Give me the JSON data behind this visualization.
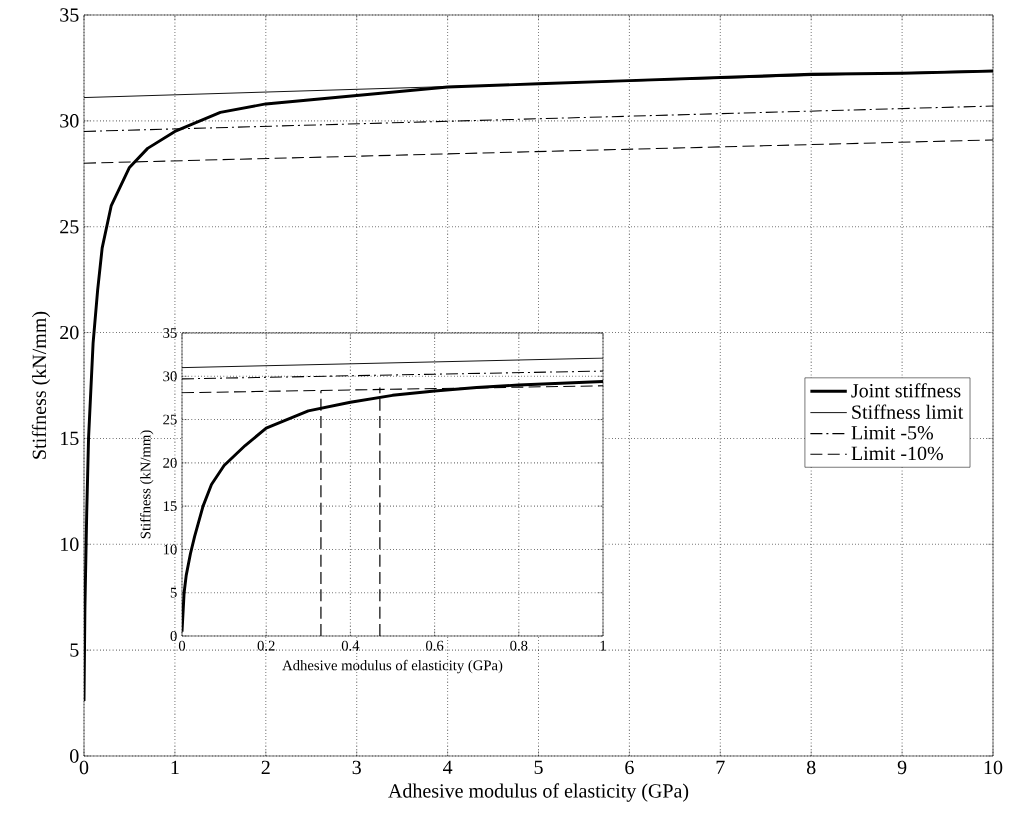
{
  "chart_data": [
    {
      "type": "line",
      "xlabel": "Adhesive modulus of elasticity (GPa)",
      "ylabel": "Stiffness (kN/mm)",
      "xlim": [
        0,
        10
      ],
      "ylim": [
        0,
        35
      ],
      "xticks": [
        0,
        1,
        2,
        3,
        4,
        5,
        6,
        7,
        8,
        9,
        10
      ],
      "yticks": [
        0,
        5,
        10,
        15,
        20,
        25,
        30,
        35
      ],
      "grid": true,
      "legend": "right",
      "series": [
        {
          "name": "Joint stiffness",
          "color": "#000000",
          "line_style": "solid",
          "x": [
            0,
            0.01,
            0.03,
            0.05,
            0.1,
            0.15,
            0.2,
            0.3,
            0.5,
            0.7,
            1,
            1.5,
            2,
            3,
            4,
            5,
            6,
            7,
            8,
            9,
            10
          ],
          "values": [
            2.6,
            7,
            11.5,
            15,
            19.5,
            22,
            24,
            26,
            27.8,
            28.7,
            29.5,
            30.4,
            30.8,
            31.2,
            31.6,
            31.75,
            31.9,
            32.05,
            32.2,
            32.25,
            32.35
          ]
        },
        {
          "name": "Stiffness limit",
          "color": "#000000",
          "line_style": "solid",
          "x": [
            0,
            10
          ],
          "values": [
            31.1,
            32.4
          ]
        },
        {
          "name": "Limit -5%",
          "color": "#000000",
          "line_style": "dashdot",
          "x": [
            0,
            10
          ],
          "values": [
            29.5,
            30.7
          ]
        },
        {
          "name": "Limit -10%",
          "color": "#000000",
          "line_style": "dashed",
          "x": [
            0,
            10
          ],
          "values": [
            28.0,
            29.1
          ]
        }
      ]
    },
    {
      "type": "line",
      "xlabel": "Adhesive modulus of elasticity (GPa)",
      "ylabel": "Stiffness (kN/mm)",
      "xlim": [
        0,
        1
      ],
      "ylim": [
        0,
        35
      ],
      "xticks": [
        0,
        0.2,
        0.4,
        0.6,
        0.8,
        1
      ],
      "yticks": [
        0,
        5,
        10,
        15,
        20,
        25,
        30,
        35
      ],
      "grid": true,
      "series": [
        {
          "color": "#000000",
          "line_style": "solid",
          "x": [
            0,
            0.005,
            0.01,
            0.02,
            0.03,
            0.05,
            0.07,
            0.1,
            0.15,
            0.2,
            0.3,
            0.4,
            0.5,
            0.6,
            0.7,
            0.8,
            0.9,
            1
          ],
          "values": [
            0.5,
            5,
            7,
            9.5,
            11.5,
            15,
            17.5,
            19.7,
            22,
            24,
            26,
            27,
            27.8,
            28.3,
            28.7,
            29,
            29.2,
            29.4
          ]
        },
        {
          "color": "#000000",
          "line_style": "solid",
          "x": [
            0,
            1
          ],
          "values": [
            31.0,
            32.1
          ]
        },
        {
          "color": "#000000",
          "line_style": "dashdot",
          "x": [
            0,
            1
          ],
          "values": [
            29.7,
            30.6
          ]
        },
        {
          "color": "#000000",
          "line_style": "dashed",
          "x": [
            0,
            1
          ],
          "values": [
            28.1,
            28.9
          ]
        },
        {
          "color": "#000000",
          "line_style": "dashed",
          "x": [
            0.33,
            0.33
          ],
          "values": [
            0,
            28.3
          ]
        },
        {
          "color": "#000000",
          "line_style": "dashed",
          "x": [
            0.47,
            0.47
          ],
          "values": [
            0,
            28.7
          ]
        }
      ]
    }
  ]
}
